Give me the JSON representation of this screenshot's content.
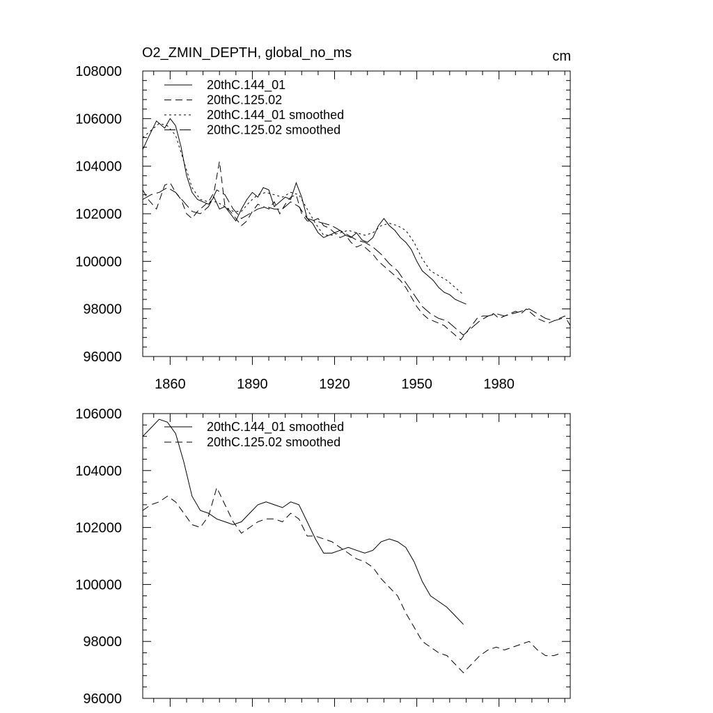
{
  "chart_data": [
    {
      "type": "line",
      "title": "O2_ZMIN_DEPTH, global_no_ms",
      "units": "cm",
      "xlim": [
        1850,
        2006
      ],
      "ylim": [
        96000,
        108000
      ],
      "xticks": [
        1860,
        1890,
        1920,
        1950,
        1980
      ],
      "yticks": [
        96000,
        98000,
        100000,
        102000,
        104000,
        106000,
        108000
      ],
      "legend_position": "top-left",
      "grid": false,
      "series": [
        {
          "name": "20thC.144_01",
          "style": "solid",
          "x": [
            1850,
            1852,
            1855,
            1858,
            1860,
            1862,
            1864,
            1866,
            1868,
            1870,
            1872,
            1874,
            1876,
            1878,
            1880,
            1882,
            1884,
            1886,
            1888,
            1890,
            1892,
            1894,
            1896,
            1898,
            1900,
            1902,
            1904,
            1906,
            1908,
            1910,
            1912,
            1914,
            1916,
            1918,
            1920,
            1922,
            1924,
            1926,
            1928,
            1930,
            1932,
            1934,
            1936,
            1938,
            1940,
            1942,
            1944,
            1946,
            1948,
            1950,
            1952,
            1954,
            1956,
            1958,
            1960,
            1962,
            1964,
            1966,
            1968
          ],
          "y": [
            104700,
            105200,
            105900,
            105600,
            106000,
            105700,
            104800,
            103600,
            102900,
            102600,
            102500,
            102400,
            102700,
            102200,
            102300,
            102000,
            101700,
            102200,
            102600,
            102900,
            102700,
            103100,
            103000,
            102300,
            102500,
            102700,
            102600,
            103300,
            102700,
            101800,
            101600,
            101200,
            101000,
            101100,
            101200,
            101300,
            101100,
            101000,
            101200,
            100900,
            100800,
            101000,
            101500,
            101800,
            101500,
            101300,
            101000,
            100800,
            100500,
            100000,
            99600,
            99400,
            99200,
            98900,
            98700,
            98600,
            98400,
            98300,
            98200
          ]
        },
        {
          "name": "20thC.125.02",
          "style": "dashed",
          "x": [
            1850,
            1852,
            1855,
            1858,
            1860,
            1862,
            1864,
            1866,
            1868,
            1870,
            1872,
            1874,
            1876,
            1878,
            1880,
            1882,
            1884,
            1886,
            1888,
            1890,
            1892,
            1894,
            1896,
            1898,
            1900,
            1902,
            1904,
            1906,
            1908,
            1910,
            1912,
            1914,
            1916,
            1918,
            1920,
            1922,
            1924,
            1926,
            1928,
            1930,
            1932,
            1934,
            1936,
            1938,
            1940,
            1942,
            1944,
            1946,
            1948,
            1950,
            1952,
            1954,
            1956,
            1958,
            1960,
            1962,
            1964,
            1966,
            1968,
            1970,
            1972,
            1974,
            1976,
            1978,
            1980,
            1982,
            1984,
            1986,
            1988,
            1990,
            1992,
            1994,
            1996,
            1998,
            2000,
            2002,
            2004,
            2006
          ],
          "y": [
            103000,
            102600,
            102200,
            103200,
            103300,
            102900,
            102600,
            102000,
            101800,
            102100,
            102300,
            102500,
            102900,
            104200,
            102300,
            102100,
            101800,
            101500,
            101700,
            102100,
            102400,
            102300,
            102200,
            102500,
            102000,
            102400,
            102700,
            102800,
            102000,
            101700,
            101700,
            101800,
            101500,
            101400,
            101200,
            101000,
            101100,
            100800,
            100600,
            100700,
            100500,
            100300,
            100000,
            99800,
            99600,
            99400,
            99200,
            98900,
            98500,
            98100,
            97800,
            97600,
            97500,
            97400,
            97300,
            97100,
            96900,
            96700,
            97000,
            97300,
            97600,
            97700,
            97700,
            97800,
            97600,
            97700,
            97800,
            97900,
            97800,
            98000,
            97800,
            97600,
            97500,
            97400,
            97500,
            97600,
            97700,
            97300
          ]
        },
        {
          "name": "20thC.144_01 smoothed",
          "style": "dotted",
          "x": [
            1850,
            1853,
            1856,
            1859,
            1862,
            1865,
            1868,
            1871,
            1874,
            1877,
            1880,
            1883,
            1886,
            1889,
            1892,
            1895,
            1898,
            1901,
            1904,
            1907,
            1910,
            1913,
            1916,
            1919,
            1922,
            1925,
            1928,
            1931,
            1934,
            1937,
            1940,
            1943,
            1946,
            1949,
            1952,
            1955,
            1958,
            1961,
            1964,
            1967
          ],
          "y": [
            105200,
            105500,
            105800,
            105700,
            105300,
            104200,
            103100,
            102600,
            102500,
            102500,
            102300,
            102100,
            102100,
            102500,
            102800,
            102900,
            102800,
            102700,
            102900,
            102800,
            102200,
            101600,
            101100,
            101100,
            101200,
            101300,
            101200,
            101100,
            101200,
            101500,
            101600,
            101500,
            101300,
            100800,
            100100,
            99600,
            99400,
            99200,
            98900,
            98600
          ]
        },
        {
          "name": "20thC.125.02 smoothed",
          "style": "longdash",
          "x": [
            1850,
            1853,
            1856,
            1859,
            1862,
            1865,
            1868,
            1871,
            1874,
            1877,
            1880,
            1883,
            1886,
            1889,
            1892,
            1895,
            1898,
            1901,
            1904,
            1907,
            1910,
            1913,
            1916,
            1919,
            1922,
            1925,
            1928,
            1931,
            1934,
            1937,
            1940,
            1943,
            1946,
            1949,
            1952,
            1955,
            1958,
            1961,
            1964,
            1967,
            1970,
            1973,
            1976,
            1979,
            1982,
            1985,
            1988,
            1991,
            1994,
            1997,
            2000,
            2003
          ],
          "y": [
            102600,
            102800,
            102900,
            103100,
            102900,
            102500,
            102100,
            102000,
            102300,
            103000,
            102800,
            102200,
            101800,
            102000,
            102200,
            102300,
            102200,
            102200,
            102500,
            102300,
            101800,
            101700,
            101600,
            101500,
            101300,
            101100,
            100900,
            100800,
            100600,
            100300,
            99900,
            99600,
            99100,
            98600,
            98100,
            97800,
            97600,
            97500,
            97200,
            96900,
            97200,
            97500,
            97700,
            97800,
            97700,
            97800,
            97900,
            98000,
            97800,
            97600,
            97500,
            97600
          ]
        }
      ]
    },
    {
      "type": "line",
      "xlim": [
        1850,
        2006
      ],
      "ylim": [
        96000,
        106000
      ],
      "yticks": [
        96000,
        98000,
        100000,
        102000,
        104000,
        106000
      ],
      "legend_position": "top-left",
      "grid": false,
      "series": [
        {
          "name": "20thC.144_01 smoothed",
          "style": "solid",
          "x": [
            1850,
            1853,
            1856,
            1859,
            1862,
            1865,
            1868,
            1871,
            1874,
            1877,
            1880,
            1883,
            1886,
            1889,
            1892,
            1895,
            1898,
            1901,
            1904,
            1907,
            1910,
            1913,
            1916,
            1919,
            1922,
            1925,
            1928,
            1931,
            1934,
            1937,
            1940,
            1943,
            1946,
            1949,
            1952,
            1955,
            1958,
            1961,
            1964,
            1967
          ],
          "y": [
            105200,
            105500,
            105800,
            105700,
            105300,
            104300,
            103100,
            102600,
            102500,
            102300,
            102200,
            102100,
            102200,
            102500,
            102800,
            102900,
            102800,
            102700,
            102900,
            102800,
            102200,
            101600,
            101100,
            101100,
            101200,
            101300,
            101200,
            101100,
            101200,
            101500,
            101600,
            101500,
            101300,
            100800,
            100100,
            99600,
            99400,
            99200,
            98900,
            98600
          ]
        },
        {
          "name": "20thC.125.02 smoothed",
          "style": "dashed",
          "x": [
            1850,
            1853,
            1856,
            1859,
            1862,
            1865,
            1868,
            1871,
            1874,
            1877,
            1880,
            1883,
            1886,
            1889,
            1892,
            1895,
            1898,
            1901,
            1904,
            1907,
            1910,
            1913,
            1916,
            1919,
            1922,
            1925,
            1928,
            1931,
            1934,
            1937,
            1940,
            1943,
            1946,
            1949,
            1952,
            1955,
            1958,
            1961,
            1964,
            1967,
            1970,
            1973,
            1976,
            1979,
            1982,
            1985,
            1988,
            1991,
            1994,
            1997,
            2000,
            2003
          ],
          "y": [
            102600,
            102800,
            102900,
            103100,
            102900,
            102500,
            102100,
            102000,
            102400,
            103400,
            102800,
            102200,
            101800,
            102000,
            102200,
            102300,
            102300,
            102200,
            102500,
            102300,
            101700,
            101700,
            101600,
            101500,
            101300,
            101100,
            100900,
            100800,
            100600,
            100200,
            99900,
            99600,
            99000,
            98500,
            98000,
            97800,
            97600,
            97500,
            97200,
            96900,
            97200,
            97500,
            97700,
            97800,
            97700,
            97800,
            97900,
            98000,
            97700,
            97500,
            97500,
            97600
          ]
        }
      ]
    }
  ]
}
